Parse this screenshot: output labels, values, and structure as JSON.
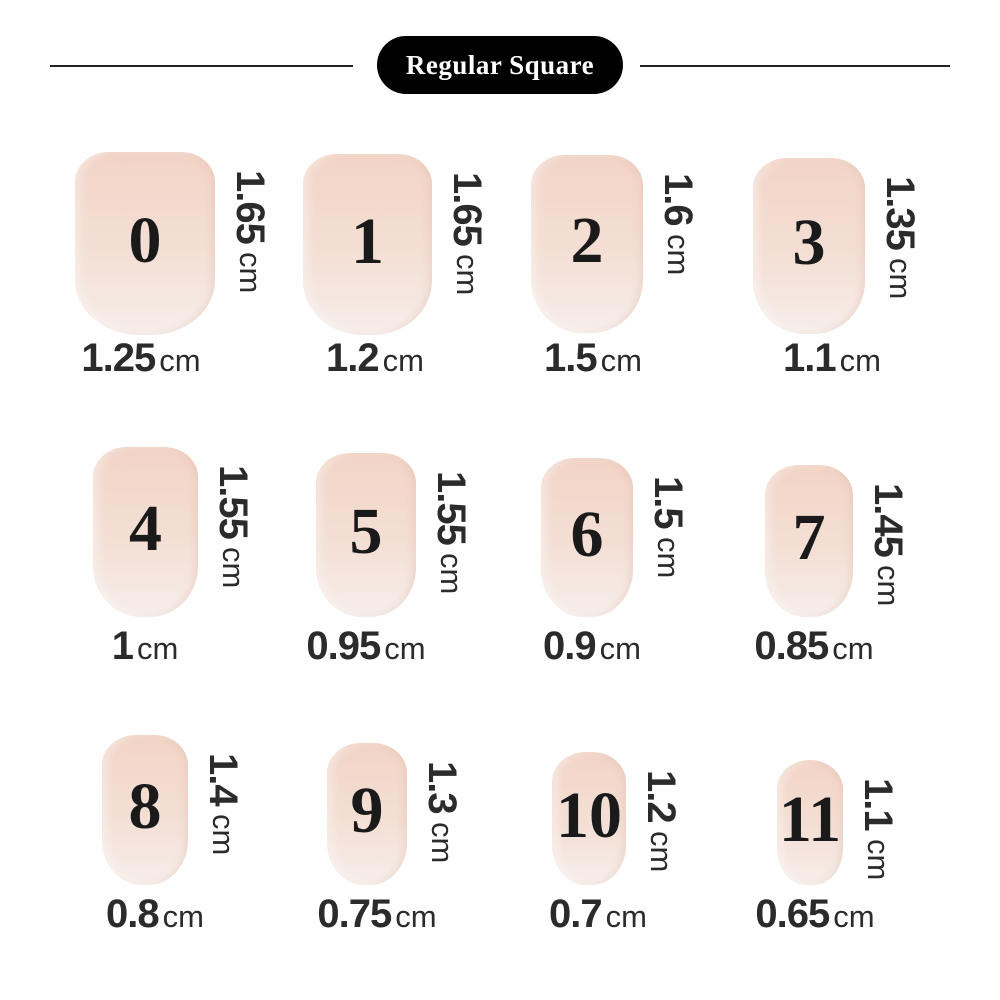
{
  "title": "Regular Square",
  "unit": "cm",
  "nail_colors": {
    "top": "#f2d4c6",
    "bottom": "#f6eeea"
  },
  "sizes": [
    {
      "size": "0",
      "width": "1.25",
      "length": "1.65"
    },
    {
      "size": "1",
      "width": "1.2",
      "length": "1.65"
    },
    {
      "size": "2",
      "width": "1.5",
      "length": "1.6"
    },
    {
      "size": "3",
      "width": "1.1",
      "length": "1.35"
    },
    {
      "size": "4",
      "width": "1",
      "length": "1.55"
    },
    {
      "size": "5",
      "width": "0.95",
      "length": "1.55"
    },
    {
      "size": "6",
      "width": "0.9",
      "length": "1.5"
    },
    {
      "size": "7",
      "width": "0.85",
      "length": "1.45"
    },
    {
      "size": "8",
      "width": "0.8",
      "length": "1.4"
    },
    {
      "size": "9",
      "width": "0.75",
      "length": "1.3"
    },
    {
      "size": "10",
      "width": "0.7",
      "length": "1.2"
    },
    {
      "size": "11",
      "width": "0.65",
      "length": "1.1"
    }
  ]
}
